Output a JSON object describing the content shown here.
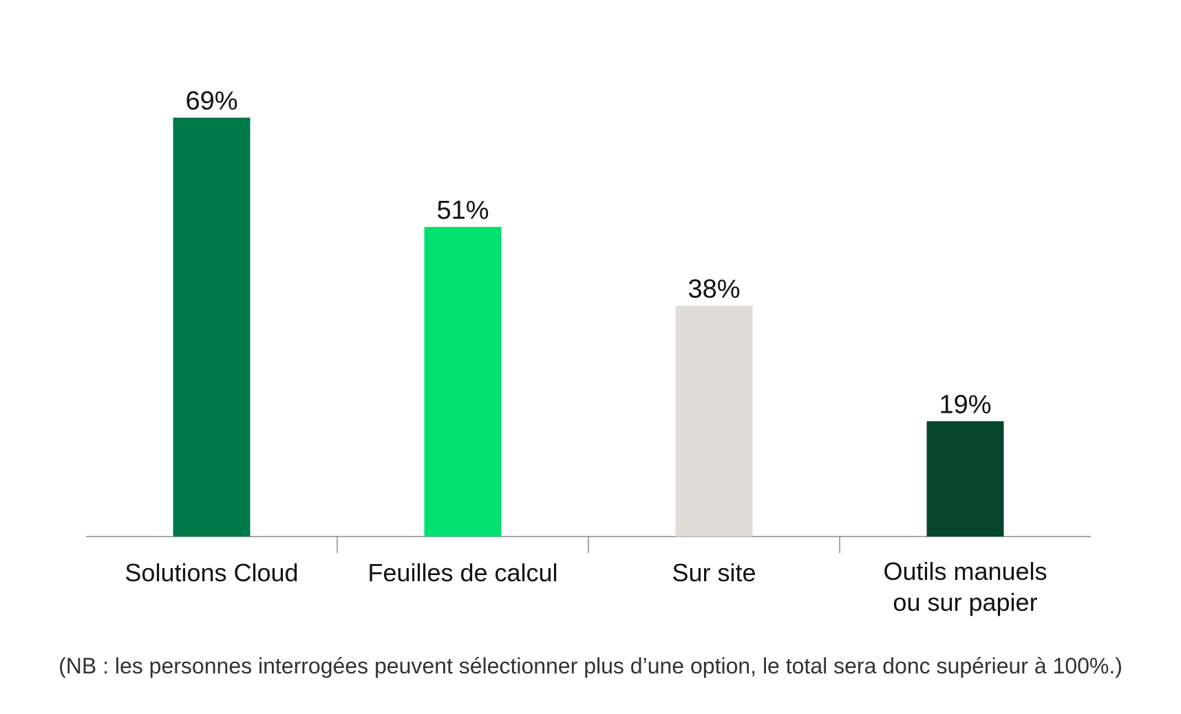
{
  "chart_data": {
    "type": "bar",
    "categories": [
      [
        "Solutions Cloud"
      ],
      [
        "Feuilles de calcul"
      ],
      [
        "Sur site"
      ],
      [
        "Outils manuels",
        "ou sur papier"
      ]
    ],
    "values": [
      69,
      51,
      38,
      19
    ],
    "value_labels": [
      "69%",
      "51%",
      "38%",
      "19%"
    ],
    "colors": [
      "#00794a",
      "#00e070",
      "#e0ddd8",
      "#06472c"
    ],
    "unit": "%",
    "ylim": [
      0,
      69
    ],
    "grid": false,
    "legend": "none",
    "xlabel": "",
    "ylabel": ""
  },
  "footnote": "(NB : les personnes interrogées peuvent sélectionner plus d’une option, le total sera donc supérieur à 100%.)"
}
